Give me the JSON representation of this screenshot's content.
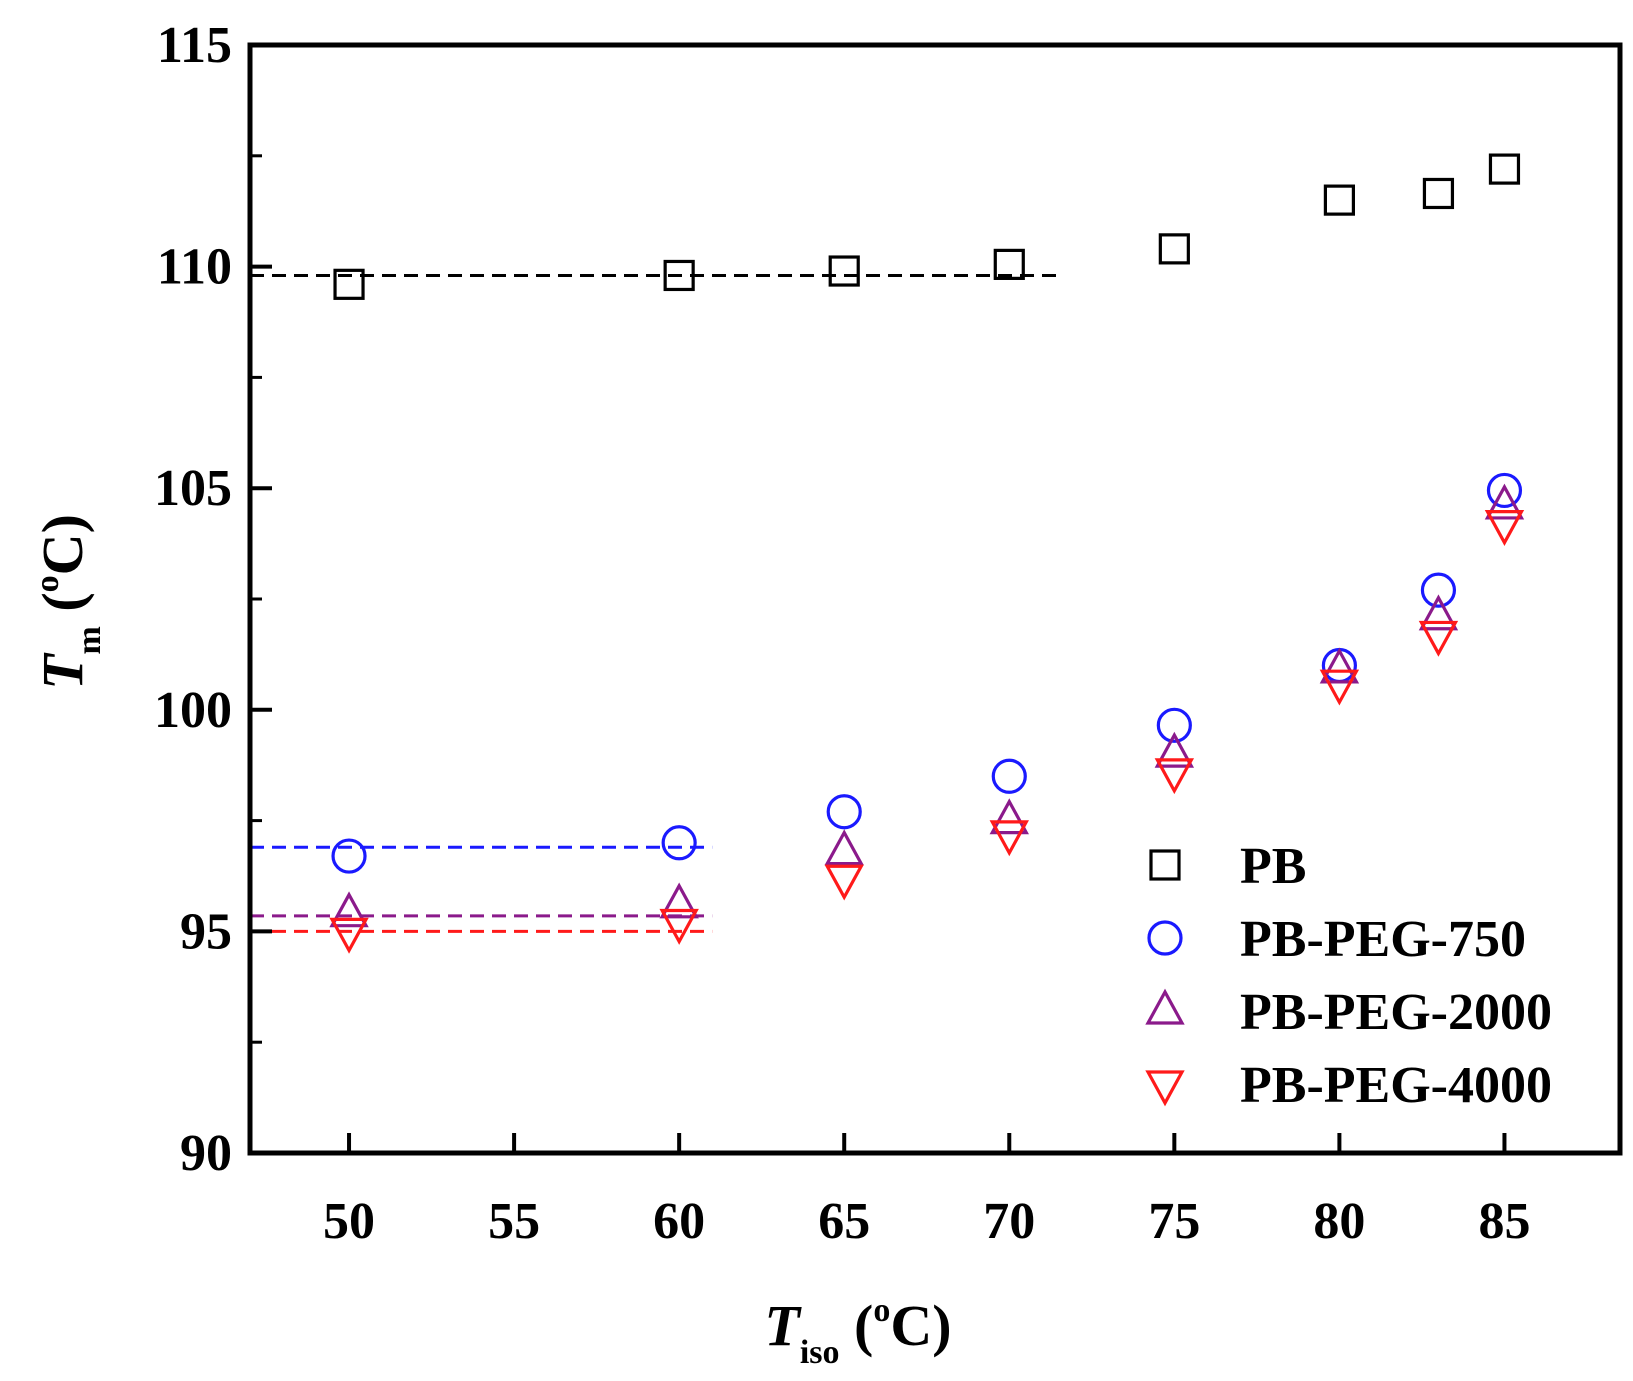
{
  "chart_data": {
    "type": "scatter",
    "x_axis": {
      "label_main": "T",
      "label_sub": "iso",
      "label_sup": "o",
      "label_unit_open": " (",
      "label_unit_close": "C)",
      "range": [
        47,
        88.5
      ],
      "ticks": [
        50,
        55,
        60,
        65,
        70,
        75,
        80,
        85
      ]
    },
    "y_axis": {
      "label_main": "T",
      "label_sub": "m",
      "label_sup": "o",
      "label_unit_open": " (",
      "label_unit_close": "C)",
      "range": [
        90,
        115
      ],
      "ticks": [
        90,
        95,
        100,
        105,
        110,
        115
      ],
      "minor_ticks": [
        92.5,
        97.5,
        102.5,
        107.5,
        112.5
      ]
    },
    "grid": false,
    "legend": {
      "position": "lower-right"
    },
    "series": [
      {
        "name": "PB",
        "marker": "square",
        "color": "#000000",
        "x": [
          50,
          60,
          65,
          70,
          75,
          80,
          83,
          85
        ],
        "y": [
          109.6,
          109.8,
          109.9,
          110.05,
          110.4,
          111.5,
          111.65,
          112.2
        ]
      },
      {
        "name": "PB-PEG-750",
        "marker": "circle",
        "color": "#1a1aff",
        "x": [
          50,
          60,
          65,
          70,
          75,
          80,
          83,
          85
        ],
        "y": [
          96.7,
          97.0,
          97.7,
          98.5,
          99.65,
          101.0,
          102.7,
          104.95
        ]
      },
      {
        "name": "PB-PEG-2000",
        "marker": "triangle-up",
        "color": "#8b1a8b",
        "x": [
          50,
          60,
          65,
          70,
          75,
          80,
          83,
          85
        ],
        "y": [
          95.4,
          95.6,
          96.8,
          97.5,
          99.0,
          100.9,
          102.1,
          104.6
        ]
      },
      {
        "name": "PB-PEG-4000",
        "marker": "triangle-down",
        "color": "#ff1a1a",
        "x": [
          50,
          60,
          65,
          70,
          75,
          80,
          83,
          85
        ],
        "y": [
          95.0,
          95.2,
          96.2,
          97.2,
          98.6,
          100.6,
          101.7,
          104.2
        ]
      }
    ],
    "reference_lines": [
      {
        "color": "#000000",
        "y": 109.8,
        "x_range": [
          47,
          71.5
        ]
      },
      {
        "color": "#1a1aff",
        "y": 96.9,
        "x_range": [
          47,
          61
        ]
      },
      {
        "color": "#8b1a8b",
        "y": 95.35,
        "x_range": [
          47,
          61
        ]
      },
      {
        "color": "#ff1a1a",
        "y": 95.0,
        "x_range": [
          47,
          61
        ]
      }
    ]
  }
}
